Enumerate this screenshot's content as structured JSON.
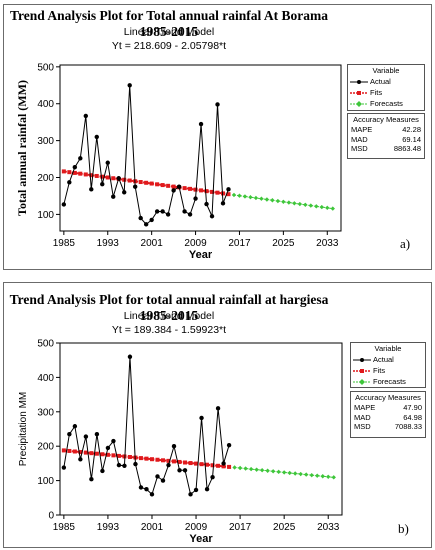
{
  "colors": {
    "actual": "#000000",
    "fits": "#e0191c",
    "forecasts": "#3ec63a"
  },
  "charts": [
    {
      "title": "Trend Analysis Plot for Total annual rainfal At Borama 1985-2015",
      "model": "Linear Trend Model",
      "equation": "Yt = 218.609 - 2.05798*t",
      "panel_label": "a)",
      "legend_title": "Variable",
      "legend_items": [
        "Actual",
        "Fits",
        "Forecasts"
      ],
      "measures_title": "Accuracy Measures",
      "measures": [
        {
          "name": "MAPE",
          "value": "42.28"
        },
        {
          "name": "MAD",
          "value": "69.14"
        },
        {
          "name": "MSD",
          "value": "8863.48"
        }
      ]
    },
    {
      "title": "Trend Analysis Plot for total annual rainfall at hargiesa 1985-2015",
      "model": "Linear Trend Model",
      "equation": "Yt = 189.384 - 1.59923*t",
      "panel_label": "b)",
      "legend_title": "Variable",
      "legend_items": [
        "Actual",
        "Fits",
        "Forecasts"
      ],
      "measures_title": "Accuracy Measures",
      "measures": [
        {
          "name": "MAPE",
          "value": "47.90"
        },
        {
          "name": "MAD",
          "value": "64.98"
        },
        {
          "name": "MSD",
          "value": "7088.33"
        }
      ]
    }
  ],
  "chart_data": [
    {
      "type": "line",
      "xlabel": "Year",
      "ylabel": "Total annual rainfal (MM)",
      "xlim": [
        1984.3,
        2035.5
      ],
      "ylim": [
        55,
        505
      ],
      "xticks": [
        1985,
        1993,
        2001,
        2009,
        2017,
        2025,
        2033
      ],
      "yticks": [
        100,
        200,
        300,
        400,
        500
      ],
      "intercept": 218.609,
      "slope": -2.05798,
      "fit_start": 1985,
      "fit_end": 2015,
      "forecast_start": 2016,
      "forecast_end": 2034,
      "series": [
        {
          "name": "Actual",
          "x": [
            1985,
            1986,
            1987,
            1988,
            1989,
            1990,
            1991,
            1992,
            1993,
            1994,
            1995,
            1996,
            1997,
            1998,
            1999,
            2000,
            2001,
            2002,
            2003,
            2004,
            2005,
            2006,
            2007,
            2008,
            2009,
            2010,
            2011,
            2012,
            2013,
            2014,
            2015
          ],
          "values": [
            127,
            187,
            228,
            252,
            367,
            168,
            310,
            182,
            240,
            148,
            198,
            160,
            450,
            175,
            90,
            73,
            85,
            108,
            108,
            100,
            165,
            175,
            108,
            100,
            143,
            345,
            128,
            95,
            398,
            130,
            168
          ]
        }
      ]
    },
    {
      "type": "line",
      "xlabel": "Year",
      "ylabel": "Precipitation MM",
      "xlim": [
        1984.3,
        2035.5
      ],
      "ylim": [
        0,
        500
      ],
      "xticks": [
        1985,
        1993,
        2001,
        2009,
        2017,
        2025,
        2033
      ],
      "yticks": [
        0,
        100,
        200,
        300,
        400,
        500
      ],
      "intercept": 189.384,
      "slope": -1.59923,
      "fit_start": 1985,
      "fit_end": 2015,
      "forecast_start": 2016,
      "forecast_end": 2034,
      "series": [
        {
          "name": "Actual",
          "x": [
            1985,
            1986,
            1987,
            1988,
            1989,
            1990,
            1991,
            1992,
            1993,
            1994,
            1995,
            1996,
            1997,
            1998,
            1999,
            2000,
            2001,
            2002,
            2003,
            2004,
            2005,
            2006,
            2007,
            2008,
            2009,
            2010,
            2011,
            2012,
            2013,
            2014,
            2015
          ],
          "values": [
            138,
            235,
            258,
            162,
            228,
            104,
            235,
            128,
            195,
            215,
            145,
            143,
            460,
            148,
            80,
            75,
            60,
            112,
            100,
            145,
            200,
            130,
            130,
            60,
            73,
            282,
            75,
            110,
            310,
            150,
            203
          ]
        }
      ]
    }
  ]
}
